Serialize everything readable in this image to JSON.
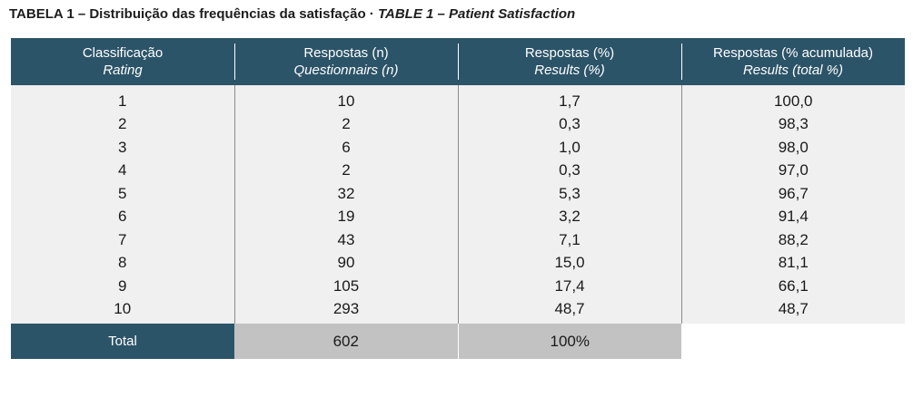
{
  "caption": {
    "pt": "TABELA 1 – Distribuição das frequências da satisfação · ",
    "en": "TABLE 1 – Patient Satisfaction"
  },
  "table": {
    "headers": [
      {
        "pt": "Classificação",
        "en": "Rating"
      },
      {
        "pt": "Respostas (n)",
        "en": "Questionnairs (n)"
      },
      {
        "pt": "Respostas (%)",
        "en": "Results (%)"
      },
      {
        "pt": "Respostas (% acumulada)",
        "en": "Results (total %)"
      }
    ],
    "rows": [
      [
        "1",
        "10",
        "1,7",
        "100,0"
      ],
      [
        "2",
        "2",
        "0,3",
        "98,3"
      ],
      [
        "3",
        "6",
        "1,0",
        "98,0"
      ],
      [
        "4",
        "2",
        "0,3",
        "97,0"
      ],
      [
        "5",
        "32",
        "5,3",
        "96,7"
      ],
      [
        "6",
        "19",
        "3,2",
        "91,4"
      ],
      [
        "7",
        "43",
        "7,1",
        "88,2"
      ],
      [
        "8",
        "90",
        "15,0",
        "81,1"
      ],
      [
        "9",
        "105",
        "17,4",
        "66,1"
      ],
      [
        "10",
        "293",
        "48,7",
        "48,7"
      ]
    ],
    "total": {
      "label": "Total",
      "n": "602",
      "pct": "100%"
    }
  },
  "colors": {
    "header_bg": "#2c5468",
    "body_bg": "#f0f0f0",
    "total_bg": "#c2c2c2"
  }
}
